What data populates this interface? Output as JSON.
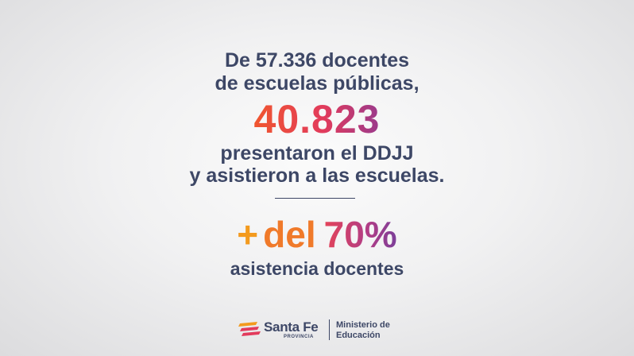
{
  "headline": {
    "line1": "De 57.336 docentes",
    "line2": "de escuelas públicas,",
    "big_number": "40.823",
    "line3": "presentaron el DDJJ",
    "line4": "y asistieron a las escuelas."
  },
  "stat": {
    "plus": "+",
    "del": "del",
    "percent": "70%",
    "caption": "asistencia docentes"
  },
  "footer": {
    "brand": "Santa Fe",
    "brand_sub": "PROVINCIA",
    "ministry_line1": "Ministerio de",
    "ministry_line2": "Educación",
    "logo_icon": "santa-fe-stripes-icon"
  },
  "colors": {
    "text": "#3d4766",
    "accent_orange": "#f39a1e",
    "accent_red": "#e23b5c",
    "accent_purple": "#7b3e99"
  }
}
